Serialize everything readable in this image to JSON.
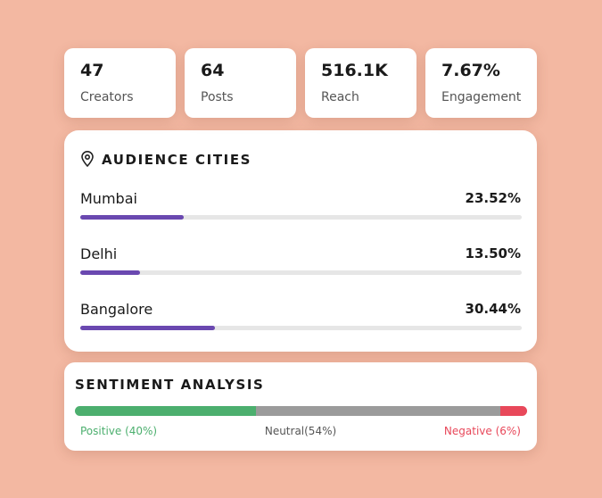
{
  "stats": [
    {
      "value": "47",
      "label": "Creators"
    },
    {
      "value": "64",
      "label": "Posts"
    },
    {
      "value": "516.1K",
      "label": "Reach"
    },
    {
      "value": "7.67%",
      "label": "Engagement"
    }
  ],
  "audience_cities": {
    "title": "AUDIENCE CITIES",
    "bar_color": "#6a48b0",
    "track_color": "#e6e6e6",
    "cities": [
      {
        "name": "Mumbai",
        "value": 23.52,
        "value_label": "23.52%"
      },
      {
        "name": "Delhi",
        "value": 13.5,
        "value_label": "13.50%"
      },
      {
        "name": "Bangalore",
        "value": 30.44,
        "value_label": "30.44%"
      }
    ]
  },
  "sentiment": {
    "title": "SENTIMENT ANALYSIS",
    "segments": [
      {
        "label": "Positive (40%)",
        "value": 40,
        "color": "#4caf6e",
        "label_color": "#4caf6e"
      },
      {
        "label": "Neutral(54%)",
        "value": 54,
        "color": "#9b9b9b",
        "label_color": "#555555"
      },
      {
        "label": "Negative (6%)",
        "value": 6,
        "color": "#e8485a",
        "label_color": "#e8485a"
      }
    ]
  }
}
